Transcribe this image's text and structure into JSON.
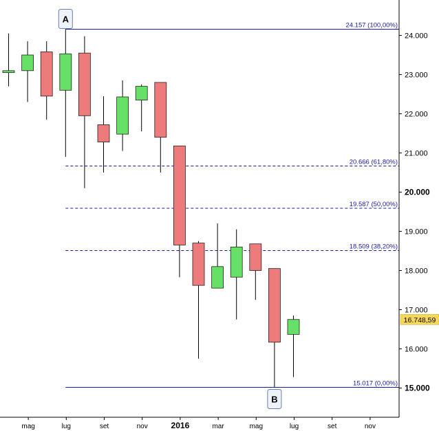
{
  "chart_data": {
    "type": "candlestick",
    "interval": "monthly",
    "y_axis": {
      "min": 14.25,
      "max": 24.9,
      "position": "right",
      "ticks": [
        "15.000",
        "16.000",
        "17.000",
        "18.000",
        "19.000",
        "20.000",
        "21.000",
        "22.000",
        "23.000",
        "24.000"
      ],
      "major_ticks": [
        "15.000",
        "20.000"
      ]
    },
    "x_axis": {
      "tick_labels": [
        "mag",
        "lug",
        "set",
        "nov",
        "2016",
        "mar",
        "mag",
        "lug",
        "set",
        "nov"
      ],
      "tick_months": [
        1,
        3,
        5,
        7,
        9,
        11,
        13,
        15,
        17,
        19
      ],
      "year_label": "2016"
    },
    "candles": [
      {
        "m": 0,
        "open": 23.05,
        "high": 24.05,
        "low": 22.7,
        "close": 23.1
      },
      {
        "m": 1,
        "open": 23.1,
        "high": 23.85,
        "low": 22.3,
        "close": 23.5
      },
      {
        "m": 2,
        "open": 23.58,
        "high": 23.85,
        "low": 21.85,
        "close": 22.45
      },
      {
        "m": 3,
        "open": 22.6,
        "high": 24.157,
        "low": 20.9,
        "close": 23.53
      },
      {
        "m": 4,
        "open": 23.55,
        "high": 23.98,
        "low": 20.1,
        "close": 21.95
      },
      {
        "m": 5,
        "open": 21.72,
        "high": 22.45,
        "low": 20.5,
        "close": 21.28
      },
      {
        "m": 6,
        "open": 21.48,
        "high": 22.85,
        "low": 21.05,
        "close": 22.43
      },
      {
        "m": 7,
        "open": 22.35,
        "high": 22.75,
        "low": 21.55,
        "close": 22.7
      },
      {
        "m": 8,
        "open": 22.8,
        "high": 22.8,
        "low": 20.5,
        "close": 21.4
      },
      {
        "m": 9,
        "open": 21.18,
        "high": 21.18,
        "low": 17.83,
        "close": 18.65
      },
      {
        "m": 10,
        "open": 18.7,
        "high": 18.75,
        "low": 15.75,
        "close": 17.62
      },
      {
        "m": 11,
        "open": 17.55,
        "high": 19.2,
        "low": 17.55,
        "close": 18.1
      },
      {
        "m": 12,
        "open": 17.83,
        "high": 19.05,
        "low": 16.75,
        "close": 18.6
      },
      {
        "m": 13,
        "open": 18.68,
        "high": 18.68,
        "low": 17.25,
        "close": 18.0
      },
      {
        "m": 14,
        "open": 18.05,
        "high": 18.05,
        "low": 15.017,
        "close": 16.17
      },
      {
        "m": 15,
        "open": 16.37,
        "high": 16.85,
        "low": 15.28,
        "close": 16.75
      }
    ],
    "fib_levels": [
      {
        "value": 24.157,
        "label": "24.157 (100,00%)",
        "style": "solid"
      },
      {
        "value": 20.666,
        "label": "20.666 (61,80%)",
        "style": "dashed"
      },
      {
        "value": 19.587,
        "label": "19.587 (50,00%)",
        "style": "dashed"
      },
      {
        "value": 18.509,
        "label": "18.509 (38,20%)",
        "style": "dashed"
      },
      {
        "value": 15.017,
        "label": "15.017 (0,00%)",
        "style": "solid"
      }
    ],
    "markers": [
      {
        "label": "A",
        "m": 3,
        "value": 24.157,
        "anchor": "above"
      },
      {
        "label": "B",
        "m": 14,
        "value": 15.017,
        "anchor": "below"
      }
    ],
    "last_price": {
      "value": 16.74859,
      "label": "16.748,59",
      "bg": "#f5d75a"
    },
    "colors": {
      "up": "#66e066",
      "down": "#ee7b7b",
      "wick": "#000000",
      "fib": "#1a1aa0",
      "axis": "#000000"
    }
  }
}
